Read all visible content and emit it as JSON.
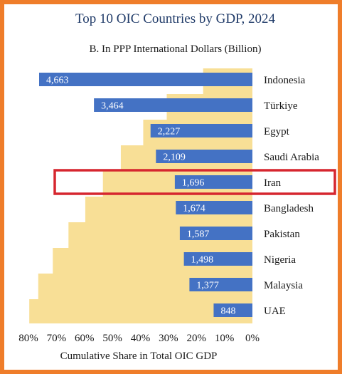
{
  "colors": {
    "bar": "#4472c4",
    "bar_label": "#ffffff",
    "share_area": "#f8df96",
    "highlight": "#d6262f",
    "border": "#ef7d2a",
    "title": "#1f3a68"
  },
  "chart_data": {
    "type": "bar",
    "orientation": "horizontal",
    "title": "Top 10 OIC Countries by GDP, 2024",
    "subtitle": "B. In PPP International Dollars  (Billion)",
    "xlabel": "Cumulative Share in Total OIC GDP",
    "categories": [
      "Indonesia",
      "Türkiye",
      "Egypt",
      "Saudi Arabia",
      "Iran",
      "Bangladesh",
      "Pakistan",
      "Nigeria",
      "Malaysia",
      "UAE"
    ],
    "series": [
      {
        "values": [
          4663,
          3464,
          2227,
          2109,
          1696,
          1674,
          1587,
          1498,
          1377,
          848
        ],
        "labels": [
          "4,663",
          "3,464",
          "2,227",
          "2,109",
          "1,696",
          "1,674",
          "1,587",
          "1,498",
          "1,377",
          "848"
        ]
      }
    ],
    "cumulative_share_percent": [
      17.6,
      30.6,
      39.0,
      47.0,
      53.4,
      59.7,
      65.7,
      71.3,
      76.5,
      79.7
    ],
    "x_ticks": [
      "80%",
      "70%",
      "60%",
      "50%",
      "40%",
      "30%",
      "20%",
      "10%",
      "0%"
    ],
    "xlim_percent": [
      80,
      0
    ],
    "highlight_category": "Iran",
    "legend": "none",
    "grid": false
  }
}
